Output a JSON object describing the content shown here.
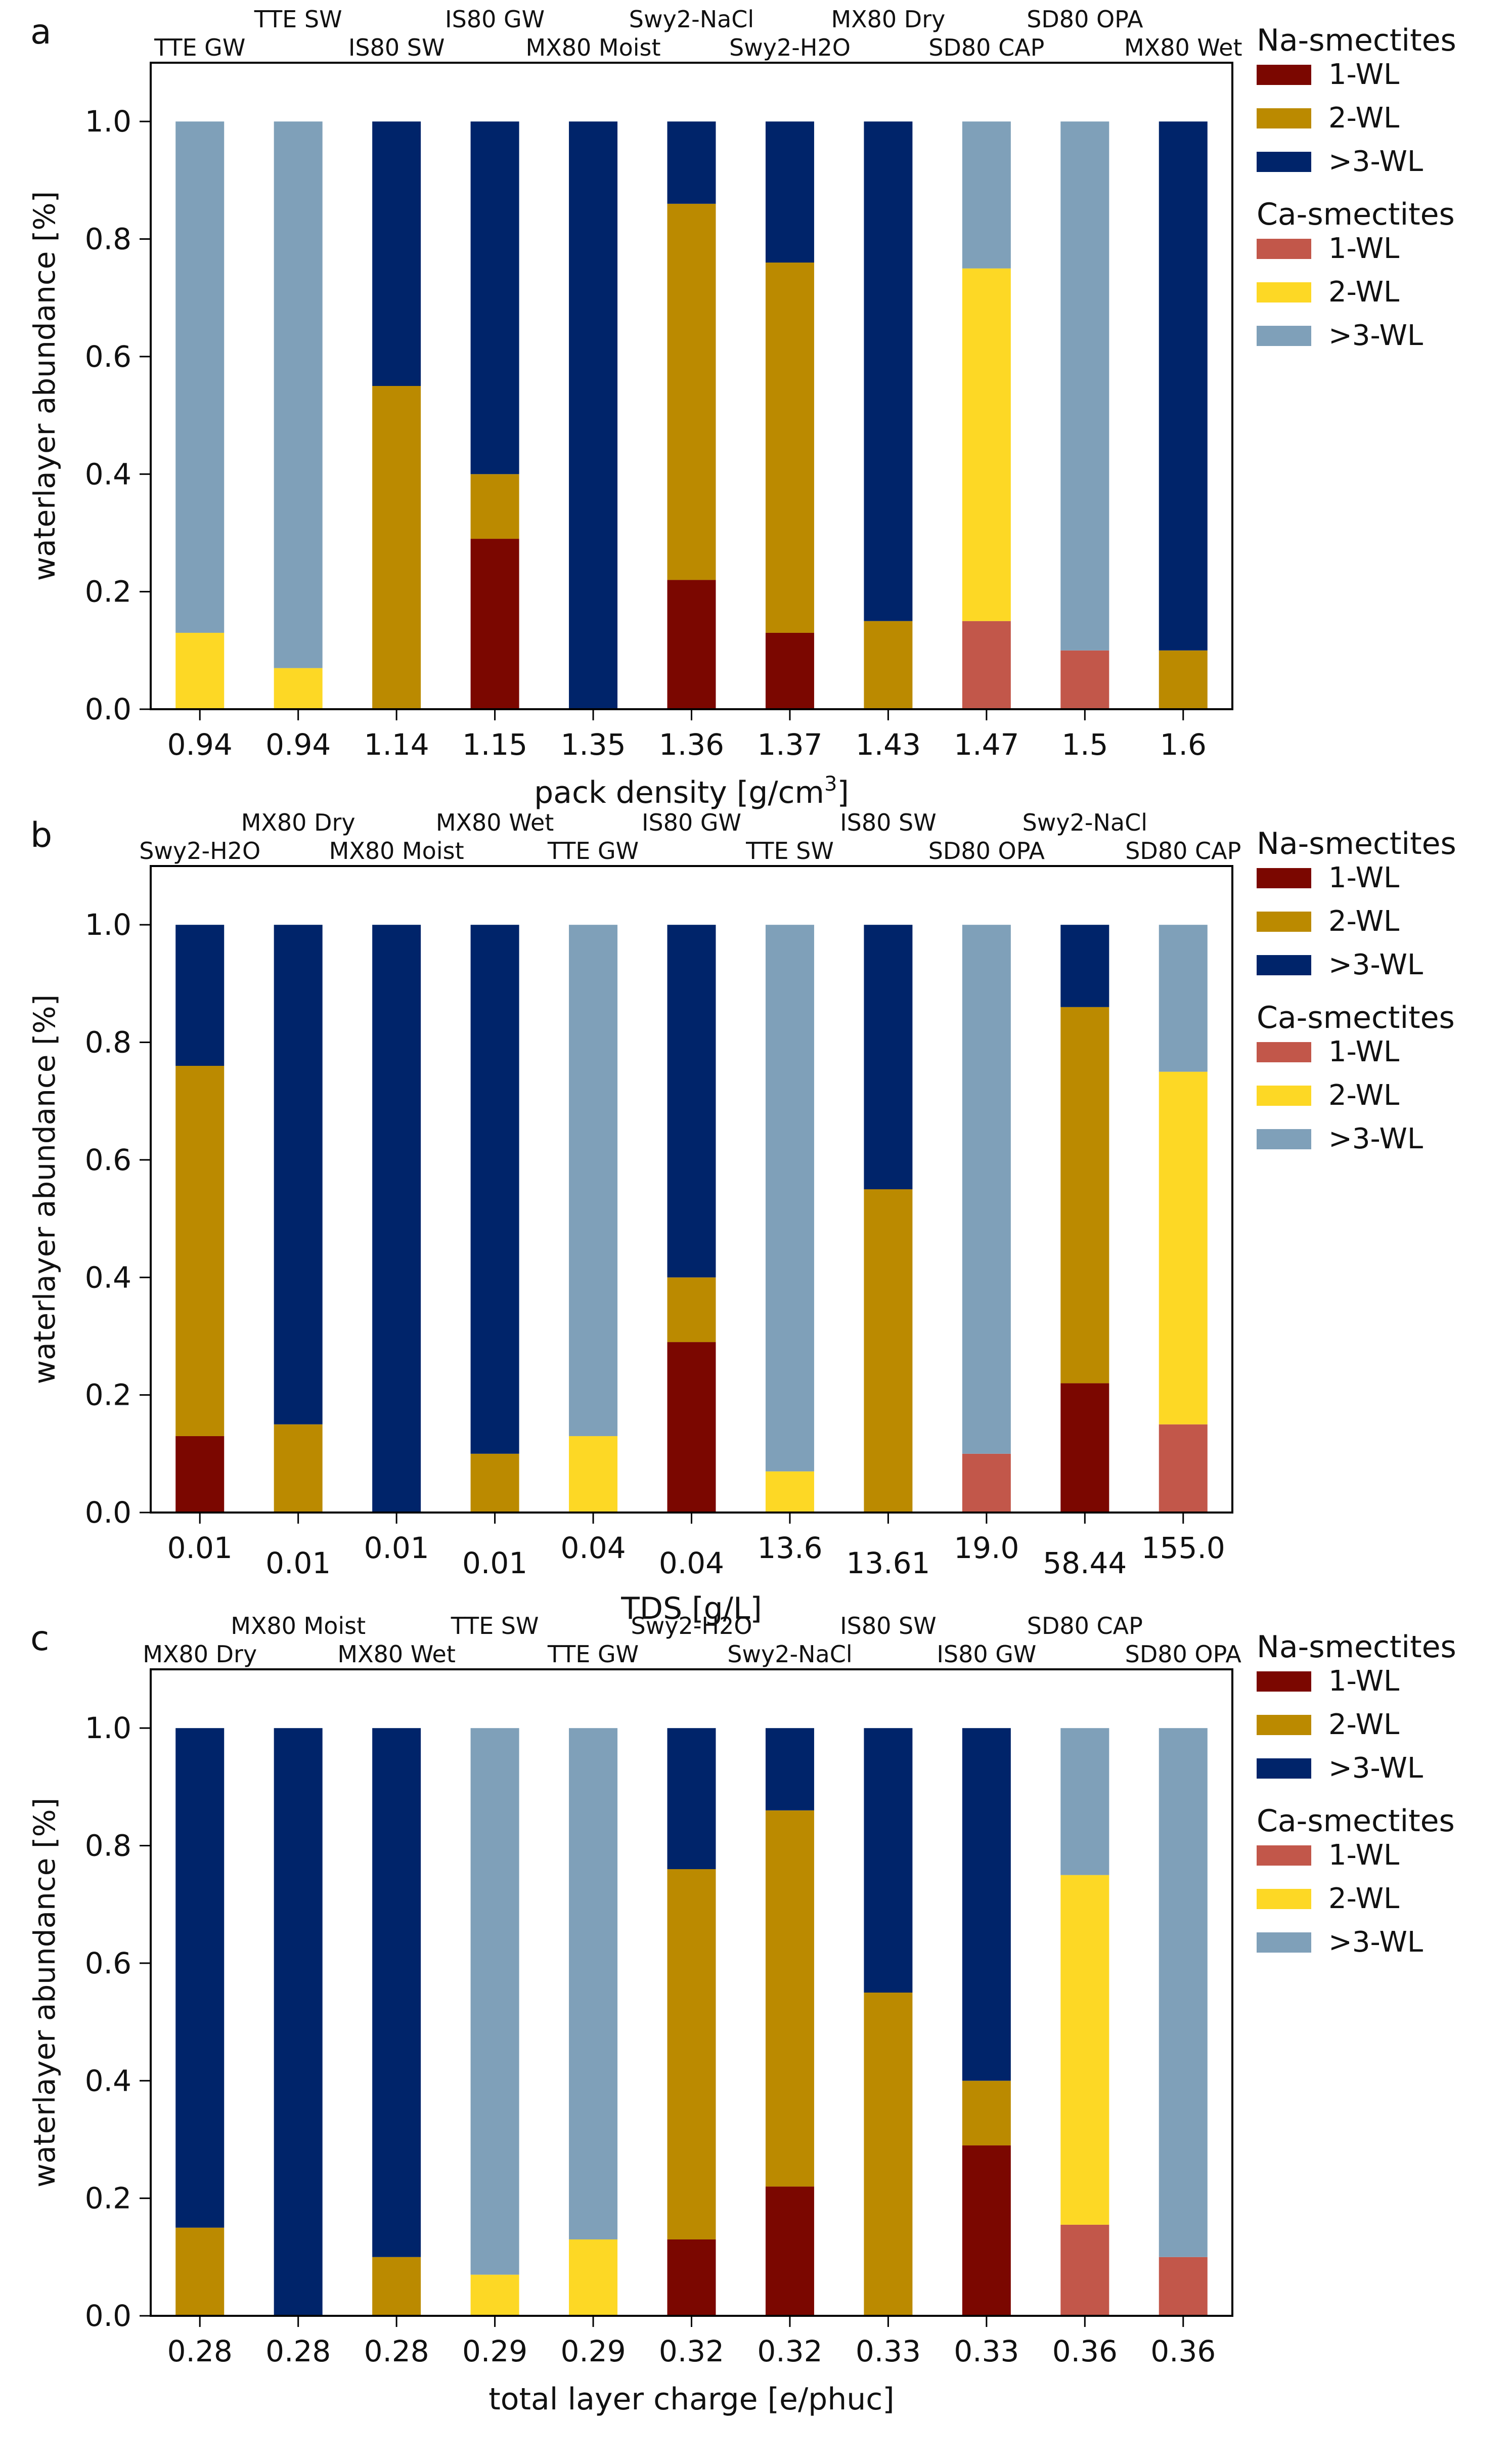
{
  "legend": {
    "na_title": "Na-smectites",
    "ca_title": "Ca-smectites",
    "labels": [
      "1-WL",
      "2-WL",
      ">3-WL"
    ]
  },
  "colors": {
    "Na_1WL": "#7b0700",
    "Na_2WL": "#bb8a00",
    "Na_3WL": "#00246a",
    "Ca_1WL": "#c2574a",
    "Ca_2WL": "#fdd825",
    "Ca_3WL": "#7fa0b9"
  },
  "chart_data": [
    {
      "panel": "a",
      "type": "bar",
      "stacked": true,
      "xlabel": "pack density [g/cm",
      "xlabel_sup": "3",
      "xlabel_tail": "]",
      "ylabel": "waterlayer abundance [%]",
      "ylim": [
        0,
        1.1
      ],
      "yticks": [
        "0.0",
        "0.2",
        "0.4",
        "0.6",
        "0.8",
        "1.0"
      ],
      "categories": [
        "0.94",
        "0.94",
        "1.14",
        "1.15",
        "1.35",
        "1.36",
        "1.37",
        "1.43",
        "1.47",
        "1.5",
        "1.6"
      ],
      "samples": [
        "TTE GW",
        "TTE SW",
        "IS80 SW",
        "IS80 GW",
        "MX80 Moist",
        "Swy2-NaCl",
        "Swy2-H2O",
        "MX80 Dry",
        "SD80 CAP",
        "SD80 OPA",
        "MX80 Wet"
      ],
      "cation": [
        "Ca",
        "Ca",
        "Na",
        "Na",
        "Na",
        "Na",
        "Na",
        "Na",
        "Ca",
        "Ca",
        "Na"
      ],
      "series": [
        {
          "name": "1-WL",
          "values": [
            0,
            0,
            0,
            0.29,
            0,
            0.22,
            0.13,
            0,
            0.15,
            0.1,
            0
          ]
        },
        {
          "name": "2-WL",
          "values": [
            0.13,
            0.07,
            0.55,
            0.11,
            0,
            0.64,
            0.63,
            0.15,
            0.6,
            0,
            0.1
          ]
        },
        {
          "name": ">3-WL",
          "values": [
            0.87,
            0.93,
            0.45,
            0.6,
            1.0,
            0.14,
            0.24,
            0.85,
            0.25,
            0.9,
            0.9
          ]
        }
      ]
    },
    {
      "panel": "b",
      "type": "bar",
      "stacked": true,
      "xlabel": "TDS [g/L]",
      "ylabel": "waterlayer abundance [%]",
      "ylim": [
        0,
        1.1
      ],
      "yticks": [
        "0.0",
        "0.2",
        "0.4",
        "0.6",
        "0.8",
        "1.0"
      ],
      "categories": [
        "0.01",
        "0.01",
        "0.01",
        "0.01",
        "0.04",
        "0.04",
        "13.6",
        "13.61",
        "19.0",
        "58.44",
        "155.0"
      ],
      "samples": [
        "Swy2-H2O",
        "MX80 Dry",
        "MX80 Moist",
        "MX80 Wet",
        "TTE GW",
        "IS80 GW",
        "TTE SW",
        "IS80 SW",
        "SD80 OPA",
        "Swy2-NaCl",
        "SD80 CAP"
      ],
      "cation": [
        "Na",
        "Na",
        "Na",
        "Na",
        "Ca",
        "Na",
        "Ca",
        "Na",
        "Ca",
        "Na",
        "Ca"
      ],
      "series": [
        {
          "name": "1-WL",
          "values": [
            0.13,
            0,
            0,
            0,
            0,
            0.29,
            0,
            0,
            0.1,
            0.22,
            0.15
          ]
        },
        {
          "name": "2-WL",
          "values": [
            0.63,
            0.15,
            0,
            0.1,
            0.13,
            0.11,
            0.07,
            0.55,
            0,
            0.64,
            0.6
          ]
        },
        {
          "name": ">3-WL",
          "values": [
            0.24,
            0.85,
            1.0,
            0.9,
            0.87,
            0.6,
            0.93,
            0.45,
            0.9,
            0.14,
            0.25
          ]
        }
      ]
    },
    {
      "panel": "c",
      "type": "bar",
      "stacked": true,
      "xlabel": "total layer charge [e/phuc]",
      "ylabel": "waterlayer abundance [%]",
      "ylim": [
        0,
        1.1
      ],
      "yticks": [
        "0.0",
        "0.2",
        "0.4",
        "0.6",
        "0.8",
        "1.0"
      ],
      "categories": [
        "0.28",
        "0.28",
        "0.28",
        "0.29",
        "0.29",
        "0.32",
        "0.32",
        "0.33",
        "0.33",
        "0.36",
        "0.36"
      ],
      "samples": [
        "MX80 Dry",
        "MX80 Moist",
        "MX80 Wet",
        "TTE SW",
        "TTE GW",
        "Swy2-H2O",
        "Swy2-NaCl",
        "IS80 SW",
        "IS80 GW",
        "SD80 CAP",
        "SD80 OPA"
      ],
      "cation": [
        "Na",
        "Na",
        "Na",
        "Ca",
        "Ca",
        "Na",
        "Na",
        "Na",
        "Na",
        "Ca",
        "Ca"
      ],
      "series": [
        {
          "name": "1-WL",
          "values": [
            0,
            0,
            0,
            0,
            0,
            0.13,
            0.22,
            0,
            0.29,
            0.155,
            0.1
          ]
        },
        {
          "name": "2-WL",
          "values": [
            0.15,
            0,
            0.1,
            0.07,
            0.13,
            0.63,
            0.64,
            0.55,
            0.11,
            0.595,
            0
          ]
        },
        {
          "name": ">3-WL",
          "values": [
            0.85,
            1.0,
            0.9,
            0.93,
            0.87,
            0.24,
            0.14,
            0.45,
            0.6,
            0.25,
            0.9
          ]
        }
      ]
    }
  ]
}
